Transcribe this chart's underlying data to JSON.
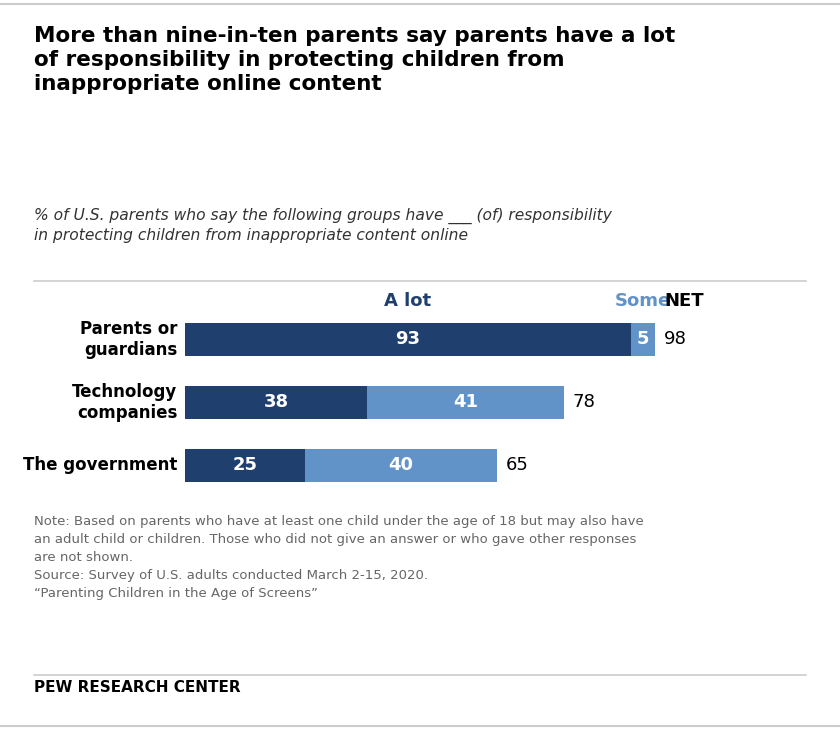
{
  "title_line1": "More than nine-in-ten parents say parents have a lot",
  "title_line2": "of responsibility in protecting children from",
  "title_line3": "inappropriate online content",
  "subtitle": "% of U.S. parents who say the following groups have ___ (of) responsibility\nin protecting children from inappropriate content online",
  "categories": [
    "Parents or\nguardians",
    "Technology\ncompanies",
    "The government"
  ],
  "a_lot": [
    93,
    38,
    25
  ],
  "some": [
    5,
    41,
    40
  ],
  "net": [
    98,
    78,
    65
  ],
  "color_alot": "#1f3f6e",
  "color_some": "#6192c8",
  "color_net_text": "#000000",
  "bar_height": 0.52,
  "xlim_max": 100,
  "note_text": "Note: Based on parents who have at least one child under the age of 18 but may also have\nan adult child or children. Those who did not give an answer or who gave other responses\nare not shown.\nSource: Survey of U.S. adults conducted March 2-15, 2020.\n“Parenting Children in the Age of Screens”",
  "footer": "PEW RESEARCH CENTER",
  "legend_alot": "A lot",
  "legend_some": "Some",
  "legend_net": "NET",
  "bg_color": "#ffffff",
  "note_color": "#666666",
  "subtitle_color": "#333333"
}
